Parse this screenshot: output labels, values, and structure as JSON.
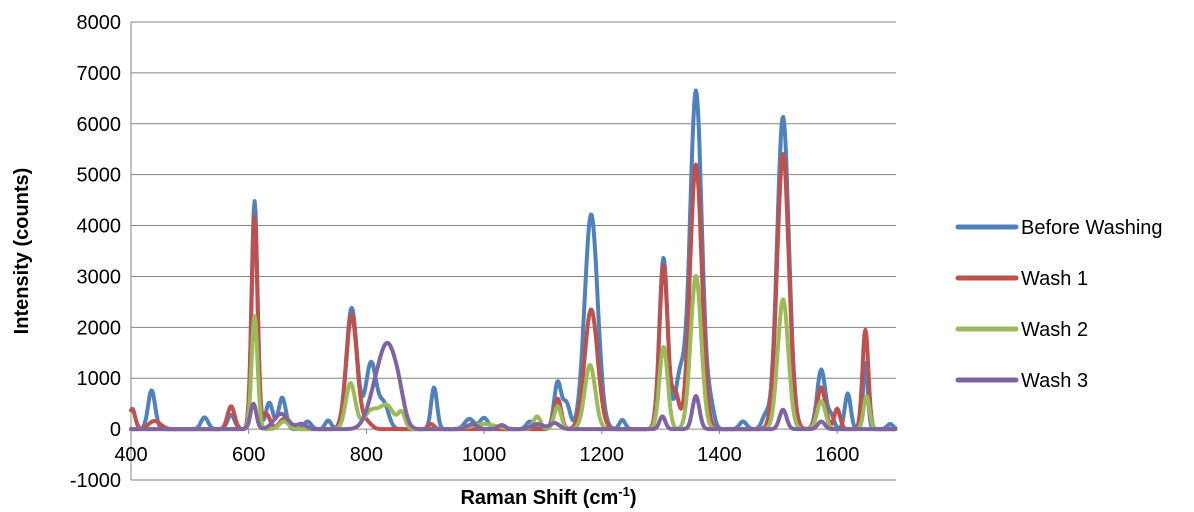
{
  "chart_data": {
    "type": "line",
    "title": "",
    "xlabel": "Raman Shift (cm",
    "xlabel_sup": "-1",
    "xlabel_end": ")",
    "ylabel": "Intensity (counts)",
    "xlim": [
      400,
      1700
    ],
    "ylim": [
      -1000,
      8000
    ],
    "xticks": [
      "400",
      "600",
      "800",
      "1000",
      "1200",
      "1400",
      "1600"
    ],
    "yticks": [
      "-1000",
      "0",
      "1000",
      "2000",
      "3000",
      "4000",
      "5000",
      "6000",
      "7000",
      "8000"
    ],
    "grid": true,
    "legend_position": "right",
    "series": [
      {
        "name": "Before Washing",
        "color": "#4F81BD",
        "peaks": [
          [
            435,
            760,
            6
          ],
          [
            525,
            230,
            6
          ],
          [
            570,
            280,
            6
          ],
          [
            610,
            4480,
            5
          ],
          [
            635,
            520,
            6
          ],
          [
            657,
            620,
            6
          ],
          [
            700,
            150,
            6
          ],
          [
            735,
            170,
            5
          ],
          [
            775,
            2380,
            9
          ],
          [
            808,
            1310,
            9
          ],
          [
            830,
            480,
            8
          ],
          [
            915,
            820,
            5
          ],
          [
            975,
            200,
            8
          ],
          [
            1000,
            220,
            7
          ],
          [
            1078,
            150,
            6
          ],
          [
            1125,
            920,
            6
          ],
          [
            1140,
            500,
            6
          ],
          [
            1182,
            4220,
            11
          ],
          [
            1235,
            180,
            5
          ],
          [
            1305,
            3370,
            7
          ],
          [
            1333,
            1050,
            8
          ],
          [
            1360,
            6650,
            10
          ],
          [
            1385,
            400,
            6
          ],
          [
            1440,
            150,
            6
          ],
          [
            1478,
            250,
            6
          ],
          [
            1508,
            6140,
            10
          ],
          [
            1573,
            1170,
            7
          ],
          [
            1590,
            250,
            5
          ],
          [
            1618,
            700,
            5
          ],
          [
            1648,
            1300,
            4
          ],
          [
            1690,
            100,
            5
          ]
        ]
      },
      {
        "name": "Wash 1",
        "color": "#C0504D",
        "peaks": [
          [
            402,
            400,
            5
          ],
          [
            440,
            160,
            10
          ],
          [
            570,
            450,
            6
          ],
          [
            610,
            4180,
            5
          ],
          [
            630,
            300,
            6
          ],
          [
            660,
            200,
            8
          ],
          [
            775,
            2250,
            9
          ],
          [
            800,
            150,
            8
          ],
          [
            910,
            100,
            5
          ],
          [
            1125,
            600,
            6
          ],
          [
            1182,
            2350,
            11
          ],
          [
            1305,
            3230,
            7
          ],
          [
            1325,
            700,
            6
          ],
          [
            1360,
            5200,
            10
          ],
          [
            1508,
            5410,
            10
          ],
          [
            1573,
            820,
            7
          ],
          [
            1600,
            400,
            5
          ],
          [
            1648,
            1950,
            5
          ]
        ]
      },
      {
        "name": "Wash 2",
        "color": "#9BBB59",
        "peaks": [
          [
            610,
            2220,
            5
          ],
          [
            660,
            150,
            8
          ],
          [
            773,
            900,
            8
          ],
          [
            808,
            350,
            12
          ],
          [
            835,
            450,
            12
          ],
          [
            860,
            300,
            6
          ],
          [
            1000,
            100,
            20
          ],
          [
            1090,
            250,
            6
          ],
          [
            1125,
            450,
            6
          ],
          [
            1180,
            1260,
            9
          ],
          [
            1305,
            1620,
            7
          ],
          [
            1360,
            3010,
            9
          ],
          [
            1508,
            2550,
            9
          ],
          [
            1573,
            550,
            7
          ],
          [
            1650,
            650,
            5
          ]
        ]
      },
      {
        "name": "Wash 3",
        "color": "#8064A2",
        "peaks": [
          [
            608,
            500,
            5
          ],
          [
            655,
            300,
            12
          ],
          [
            690,
            100,
            8
          ],
          [
            820,
            900,
            15
          ],
          [
            838,
            1100,
            12
          ],
          [
            855,
            600,
            10
          ],
          [
            980,
            100,
            8
          ],
          [
            1030,
            80,
            6
          ],
          [
            1090,
            100,
            10
          ],
          [
            1120,
            120,
            8
          ],
          [
            1303,
            250,
            5
          ],
          [
            1360,
            650,
            6
          ],
          [
            1508,
            380,
            6
          ],
          [
            1573,
            150,
            6
          ]
        ]
      }
    ]
  }
}
